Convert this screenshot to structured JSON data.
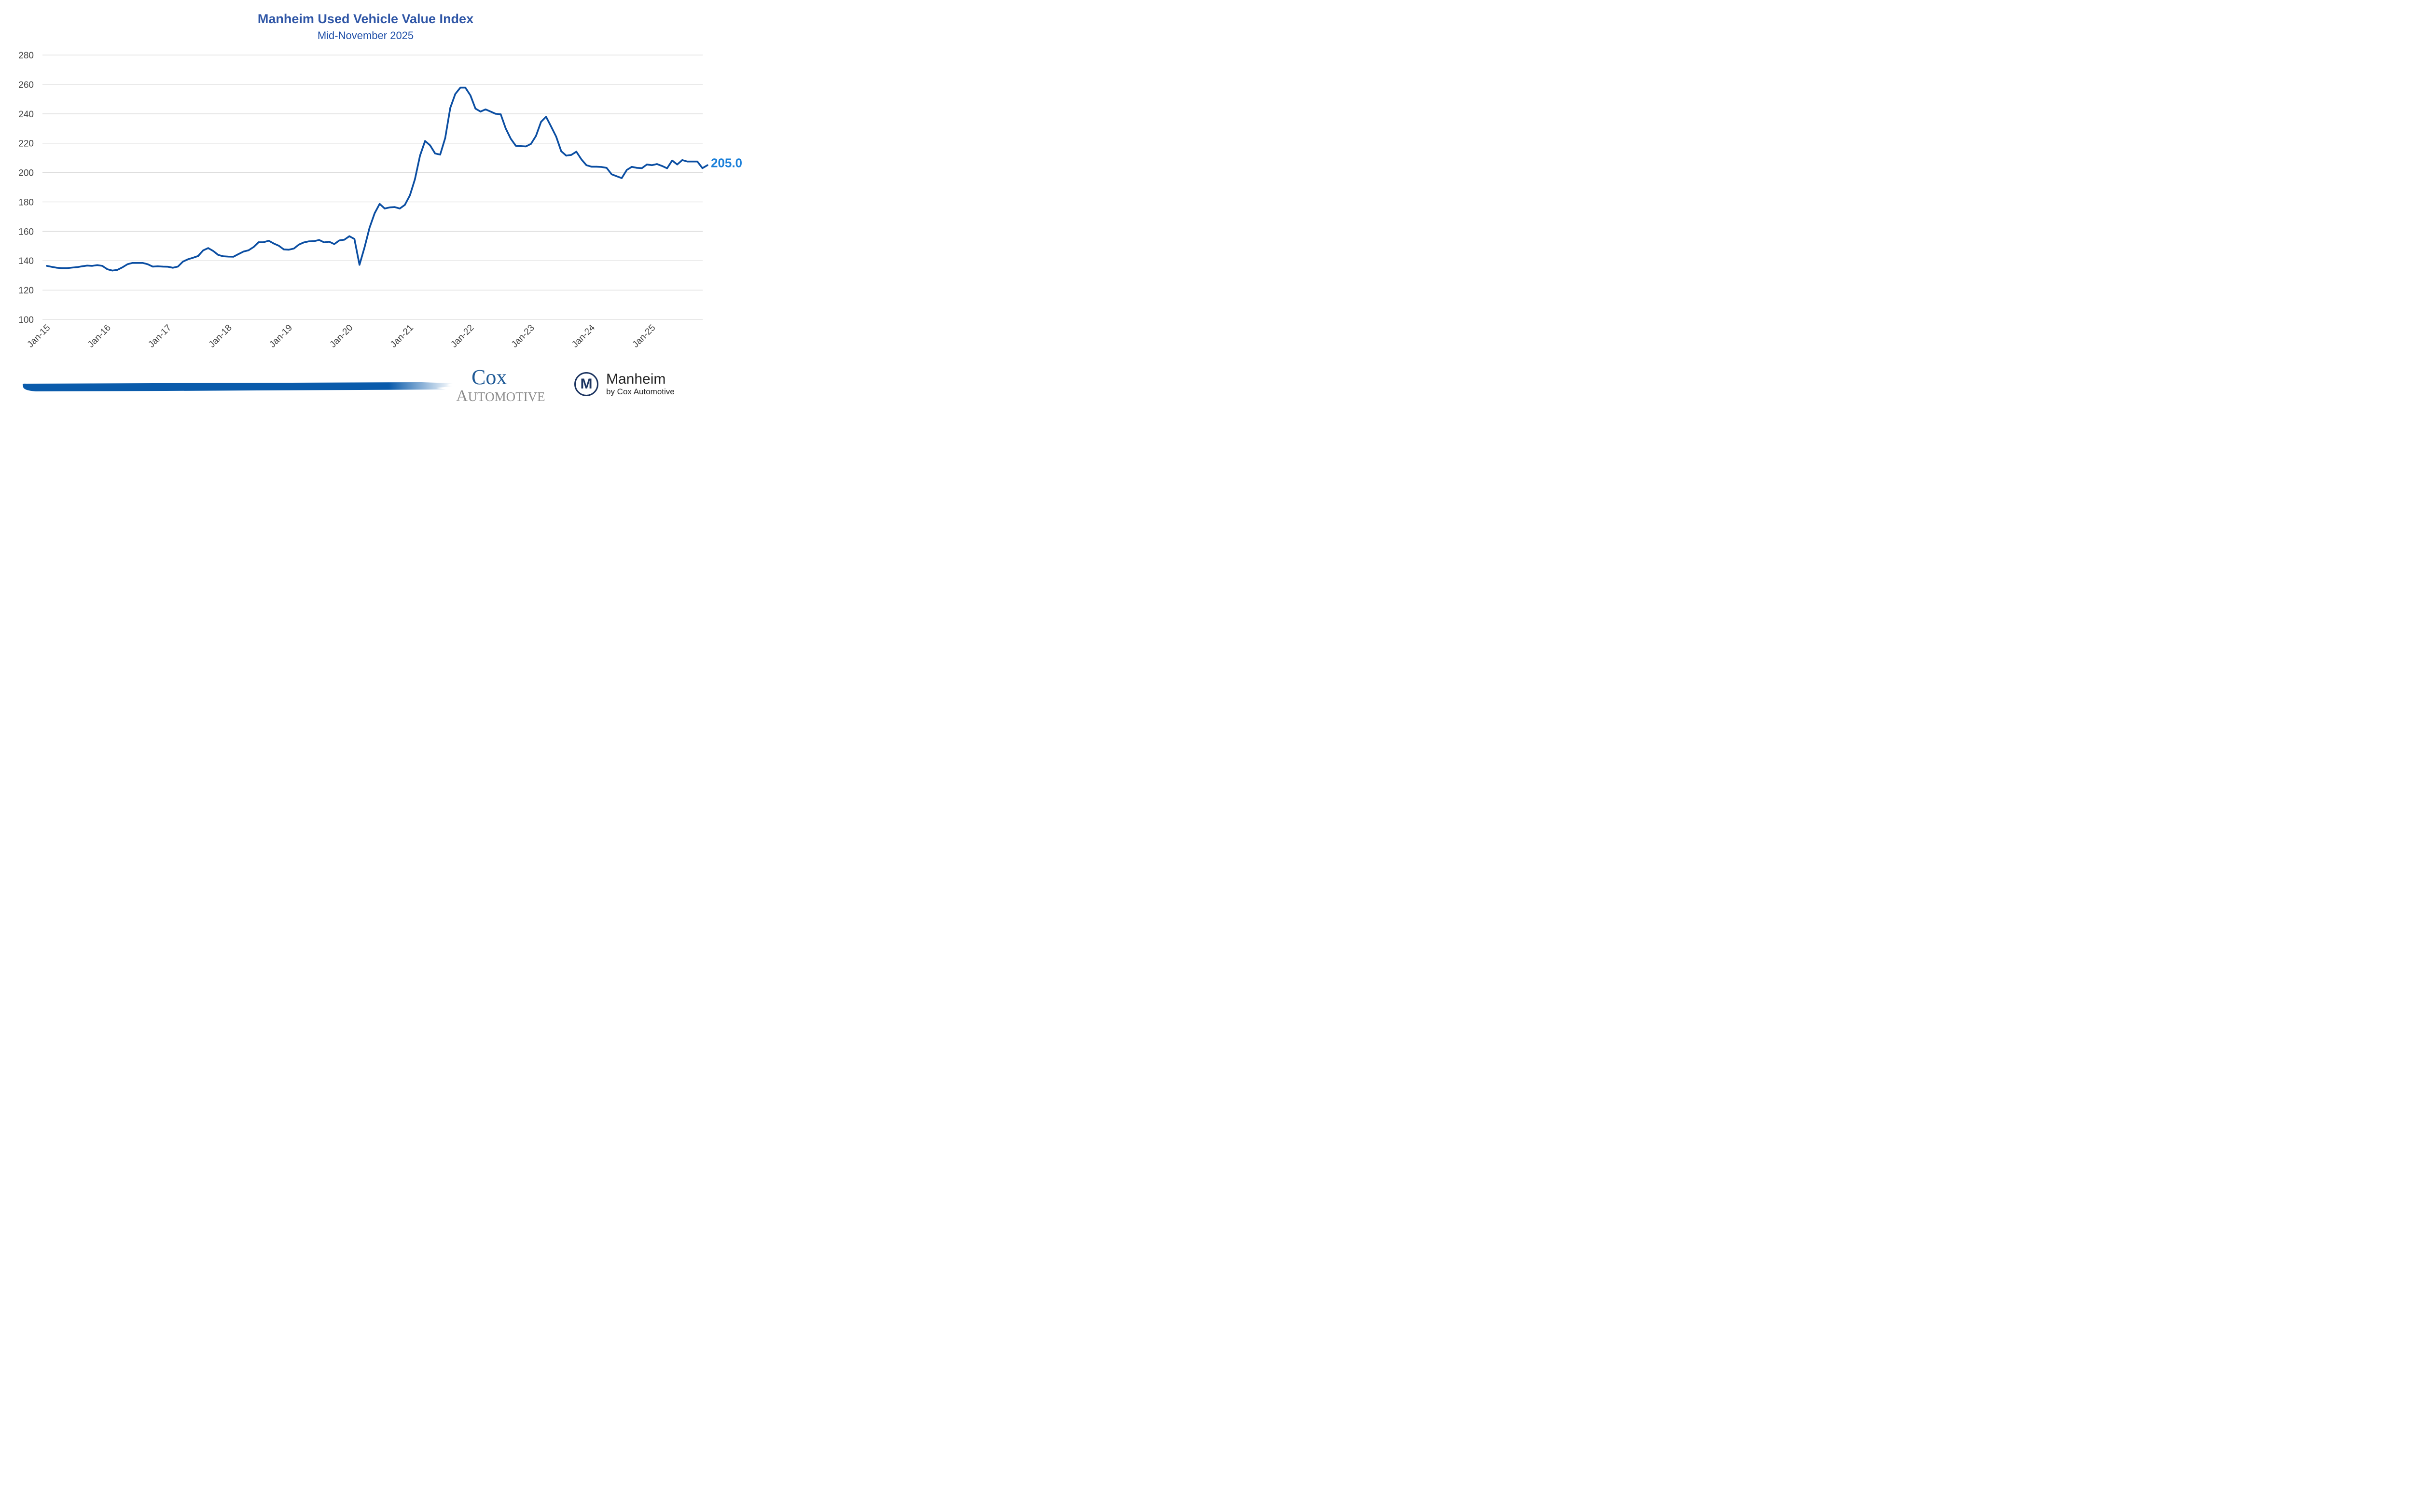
{
  "chart_data": {
    "type": "line",
    "title": "Manheim Used Vehicle Value Index",
    "subtitle": "Mid-November 2025",
    "xlabel": "",
    "ylabel": "",
    "ylim": [
      100,
      280
    ],
    "yticks": [
      100,
      120,
      140,
      160,
      180,
      200,
      220,
      240,
      260,
      280
    ],
    "xtick_labels": [
      "Jan-15",
      "Jan-16",
      "Jan-17",
      "Jan-18",
      "Jan-19",
      "Jan-20",
      "Jan-21",
      "Jan-22",
      "Jan-23",
      "Jan-24",
      "Jan-25"
    ],
    "grid": true,
    "legend": "none",
    "end_label": "205.0",
    "series": [
      {
        "name": "Manheim Used Vehicle Value Index",
        "color": "#0b4ea2",
        "start": "Jan-15",
        "frequency": "monthly",
        "values": [
          136.5,
          135.8,
          135.2,
          134.9,
          134.9,
          135.3,
          135.6,
          136.2,
          136.7,
          136.5,
          137.0,
          136.5,
          134.2,
          133.3,
          133.8,
          135.5,
          137.6,
          138.5,
          138.5,
          138.5,
          137.6,
          136.0,
          136.2,
          136.0,
          135.9,
          135.2,
          136.0,
          139.4,
          141.0,
          142.0,
          143.2,
          147.0,
          148.6,
          146.6,
          143.9,
          143.0,
          142.8,
          142.7,
          144.5,
          146.2,
          147.1,
          149.3,
          152.6,
          152.6,
          153.6,
          151.7,
          150.2,
          147.7,
          147.5,
          148.3,
          151.0,
          152.5,
          153.2,
          153.3,
          154.1,
          152.5,
          152.9,
          151.3,
          153.8,
          154.3,
          156.7,
          154.8,
          137.2,
          149.0,
          162.5,
          172.3,
          178.7,
          175.5,
          176.3,
          176.5,
          175.5,
          178.0,
          184.5,
          195.5,
          211.5,
          221.5,
          218.5,
          213.0,
          212.2,
          223.5,
          244.0,
          253.5,
          257.8,
          257.8,
          252.5,
          243.5,
          241.5,
          243.0,
          241.5,
          240.0,
          239.7,
          230.0,
          223.0,
          218.2,
          218.0,
          217.8,
          219.5,
          225.0,
          234.5,
          238.0,
          231.3,
          224.5,
          214.5,
          211.5,
          212.0,
          214.2,
          209.0,
          205.0,
          204.0,
          204.0,
          203.8,
          203.2,
          198.8,
          197.5,
          196.2,
          201.8,
          203.9,
          203.2,
          203.0,
          205.5,
          205.0,
          205.8,
          204.5,
          202.9,
          208.2,
          205.5,
          208.5,
          207.5,
          207.5,
          207.5,
          203.0,
          205.0
        ]
      }
    ]
  },
  "footer": {
    "cox_top": "Cox",
    "cox_bottom_initial": "A",
    "cox_bottom_rest": "UTOMOTIVE",
    "manheim_mark": "M",
    "manheim_name": "Manheim",
    "manheim_sub": "by Cox Automotive",
    "brand_blue": "#0a5bab",
    "cox_grey": "#8c8c8c"
  }
}
